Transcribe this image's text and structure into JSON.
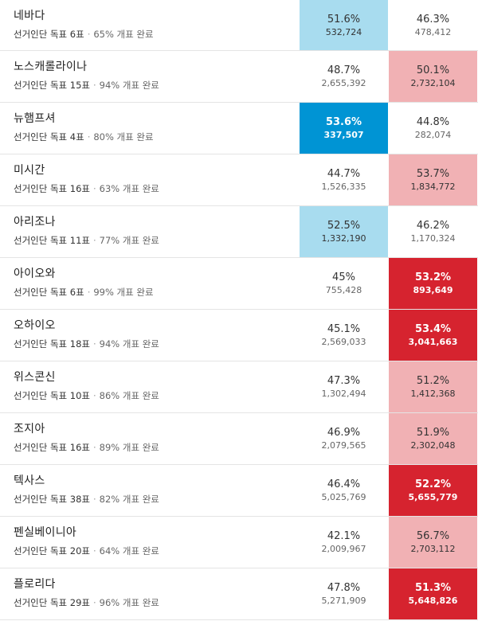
{
  "states": [
    {
      "name": "네바다",
      "ev": "선거인단 독표 6표",
      "reported": "65% 개표 완료",
      "dem": {
        "pct": "51.6%",
        "votes": "532,724",
        "status": "win-light"
      },
      "rep": {
        "pct": "46.3%",
        "votes": "478,412",
        "status": "none"
      }
    },
    {
      "name": "노스캐롤라이나",
      "ev": "선거인단 독표 15표",
      "reported": "94% 개표 완료",
      "dem": {
        "pct": "48.7%",
        "votes": "2,655,392",
        "status": "none"
      },
      "rep": {
        "pct": "50.1%",
        "votes": "2,732,104",
        "status": "rep-light"
      }
    },
    {
      "name": "뉴햄프셔",
      "ev": "선거인단 독표 4표",
      "reported": "80% 개표 완료",
      "dem": {
        "pct": "53.6%",
        "votes": "337,507",
        "status": "win-strong"
      },
      "rep": {
        "pct": "44.8%",
        "votes": "282,074",
        "status": "none"
      }
    },
    {
      "name": "미시간",
      "ev": "선거인단 독표 16표",
      "reported": "63% 개표 완료",
      "dem": {
        "pct": "44.7%",
        "votes": "1,526,335",
        "status": "none"
      },
      "rep": {
        "pct": "53.7%",
        "votes": "1,834,772",
        "status": "rep-light"
      }
    },
    {
      "name": "아리조나",
      "ev": "선거인단 독표 11표",
      "reported": "77% 개표 완료",
      "dem": {
        "pct": "52.5%",
        "votes": "1,332,190",
        "status": "win-light"
      },
      "rep": {
        "pct": "46.2%",
        "votes": "1,170,324",
        "status": "none"
      }
    },
    {
      "name": "아이오와",
      "ev": "선거인단 독표 6표",
      "reported": "99% 개표 완료",
      "dem": {
        "pct": "45%",
        "votes": "755,428",
        "status": "none"
      },
      "rep": {
        "pct": "53.2%",
        "votes": "893,649",
        "status": "rep-strong"
      }
    },
    {
      "name": "오하이오",
      "ev": "선거인단 독표 18표",
      "reported": "94% 개표 완료",
      "dem": {
        "pct": "45.1%",
        "votes": "2,569,033",
        "status": "none"
      },
      "rep": {
        "pct": "53.4%",
        "votes": "3,041,663",
        "status": "rep-strong"
      }
    },
    {
      "name": "위스콘신",
      "ev": "선거인단 독표 10표",
      "reported": "86% 개표 완료",
      "dem": {
        "pct": "47.3%",
        "votes": "1,302,494",
        "status": "none"
      },
      "rep": {
        "pct": "51.2%",
        "votes": "1,412,368",
        "status": "rep-light"
      }
    },
    {
      "name": "조지아",
      "ev": "선거인단 독표 16표",
      "reported": "89% 개표 완료",
      "dem": {
        "pct": "46.9%",
        "votes": "2,079,565",
        "status": "none"
      },
      "rep": {
        "pct": "51.9%",
        "votes": "2,302,048",
        "status": "rep-light"
      }
    },
    {
      "name": "텍사스",
      "ev": "선거인단 독표 38표",
      "reported": "82% 개표 완료",
      "dem": {
        "pct": "46.4%",
        "votes": "5,025,769",
        "status": "none"
      },
      "rep": {
        "pct": "52.2%",
        "votes": "5,655,779",
        "status": "rep-strong"
      }
    },
    {
      "name": "펜실베이니아",
      "ev": "선거인단 독표 20표",
      "reported": "64% 개표 완료",
      "dem": {
        "pct": "42.1%",
        "votes": "2,009,967",
        "status": "none"
      },
      "rep": {
        "pct": "56.7%",
        "votes": "2,703,112",
        "status": "rep-light"
      }
    },
    {
      "name": "플로리다",
      "ev": "선거인단 독표 29표",
      "reported": "96% 개표 완료",
      "dem": {
        "pct": "47.8%",
        "votes": "5,271,909",
        "status": "none"
      },
      "rep": {
        "pct": "51.3%",
        "votes": "5,648,826",
        "status": "rep-strong"
      }
    }
  ],
  "separator": "·",
  "colors": {
    "dem_light": "#a8dcef",
    "dem_strong": "#0094d4",
    "rep_light": "#f1b1b4",
    "rep_strong": "#d6232f"
  }
}
